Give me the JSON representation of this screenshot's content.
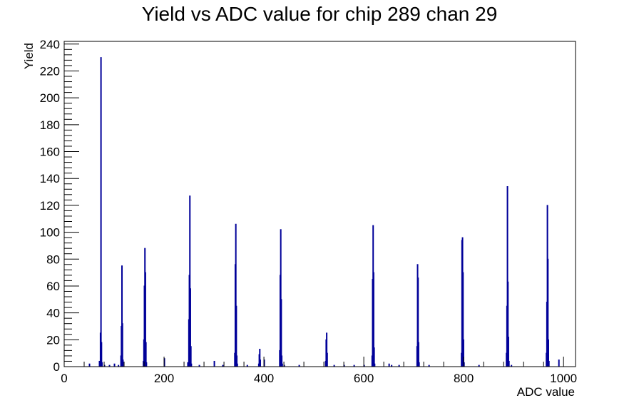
{
  "chart_data": {
    "type": "bar",
    "title": "Yield vs ADC value for chip 289 chan 29",
    "xlabel": "ADC value",
    "ylabel": "Yield",
    "xlim": [
      0,
      1024
    ],
    "ylim": [
      0,
      242
    ],
    "xticks": [
      "0",
      "200",
      "400",
      "600",
      "800",
      "1000"
    ],
    "yticks": [
      "0",
      "20",
      "40",
      "60",
      "80",
      "100",
      "120",
      "140",
      "160",
      "180",
      "200",
      "220",
      "240"
    ],
    "grid": false,
    "legend": "none",
    "bin_width": 1,
    "color": "#000099",
    "bins": [
      [
        50,
        2
      ],
      [
        70,
        4
      ],
      [
        72,
        25
      ],
      [
        73,
        230
      ],
      [
        74,
        18
      ],
      [
        75,
        3
      ],
      [
        80,
        1
      ],
      [
        90,
        1
      ],
      [
        100,
        2
      ],
      [
        108,
        1
      ],
      [
        113,
        8
      ],
      [
        114,
        30
      ],
      [
        115,
        75
      ],
      [
        116,
        32
      ],
      [
        117,
        5
      ],
      [
        158,
        4
      ],
      [
        159,
        20
      ],
      [
        160,
        60
      ],
      [
        161,
        88
      ],
      [
        162,
        70
      ],
      [
        163,
        18
      ],
      [
        164,
        3
      ],
      [
        200,
        6
      ],
      [
        247,
        3
      ],
      [
        249,
        35
      ],
      [
        250,
        68
      ],
      [
        251,
        127
      ],
      [
        252,
        58
      ],
      [
        253,
        15
      ],
      [
        254,
        2
      ],
      [
        270,
        1
      ],
      [
        300,
        4
      ],
      [
        317,
        1
      ],
      [
        341,
        10
      ],
      [
        342,
        76
      ],
      [
        343,
        106
      ],
      [
        344,
        45
      ],
      [
        345,
        8
      ],
      [
        346,
        2
      ],
      [
        366,
        1
      ],
      [
        389,
        2
      ],
      [
        390,
        9
      ],
      [
        391,
        13
      ],
      [
        392,
        5
      ],
      [
        400,
        5
      ],
      [
        431,
        12
      ],
      [
        432,
        68
      ],
      [
        433,
        102
      ],
      [
        434,
        50
      ],
      [
        435,
        8
      ],
      [
        436,
        2
      ],
      [
        440,
        1
      ],
      [
        470,
        1
      ],
      [
        523,
        4
      ],
      [
        524,
        20
      ],
      [
        525,
        25
      ],
      [
        526,
        10
      ],
      [
        540,
        1
      ],
      [
        560,
        1
      ],
      [
        580,
        1
      ],
      [
        600,
        1
      ],
      [
        616,
        8
      ],
      [
        617,
        65
      ],
      [
        618,
        105
      ],
      [
        619,
        70
      ],
      [
        620,
        14
      ],
      [
        621,
        2
      ],
      [
        650,
        2
      ],
      [
        655,
        1
      ],
      [
        670,
        1
      ],
      [
        706,
        15
      ],
      [
        707,
        76
      ],
      [
        708,
        66
      ],
      [
        709,
        18
      ],
      [
        710,
        3
      ],
      [
        730,
        1
      ],
      [
        795,
        10
      ],
      [
        796,
        94
      ],
      [
        797,
        96
      ],
      [
        798,
        70
      ],
      [
        799,
        20
      ],
      [
        800,
        3
      ],
      [
        830,
        1
      ],
      [
        885,
        10
      ],
      [
        886,
        45
      ],
      [
        887,
        134
      ],
      [
        888,
        63
      ],
      [
        889,
        22
      ],
      [
        890,
        4
      ],
      [
        895,
        1
      ],
      [
        965,
        10
      ],
      [
        966,
        48
      ],
      [
        967,
        120
      ],
      [
        968,
        80
      ],
      [
        969,
        20
      ],
      [
        970,
        4
      ],
      [
        990,
        5
      ]
    ]
  }
}
